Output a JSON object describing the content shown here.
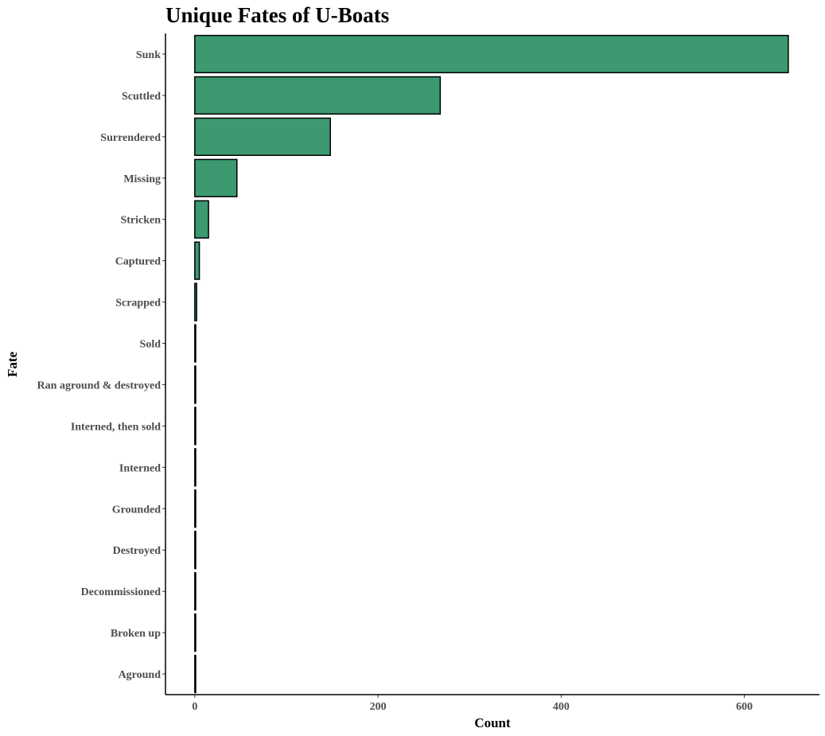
{
  "chart_data": {
    "type": "bar",
    "orientation": "horizontal",
    "title": "Unique Fates of U-Boats",
    "xlabel": "Count",
    "ylabel": "Fate",
    "categories": [
      "Sunk",
      "Scuttled",
      "Surrendered",
      "Missing",
      "Stricken",
      "Captured",
      "Scrapped",
      "Sold",
      "Ran aground & destroyed",
      "Interned, then sold",
      "Interned",
      "Grounded",
      "Destroyed",
      "Decommissioned",
      "Broken up",
      "Aground"
    ],
    "values": [
      648,
      268,
      148,
      46,
      15,
      5,
      2,
      1,
      1,
      1,
      1,
      1,
      1,
      1,
      1,
      1
    ],
    "xlim": [
      -32,
      682
    ],
    "xticks": [
      0,
      200,
      400,
      600
    ],
    "grid": false,
    "legend": "none",
    "bar_fill": "#3d9970",
    "bar_stroke": "#000000"
  }
}
